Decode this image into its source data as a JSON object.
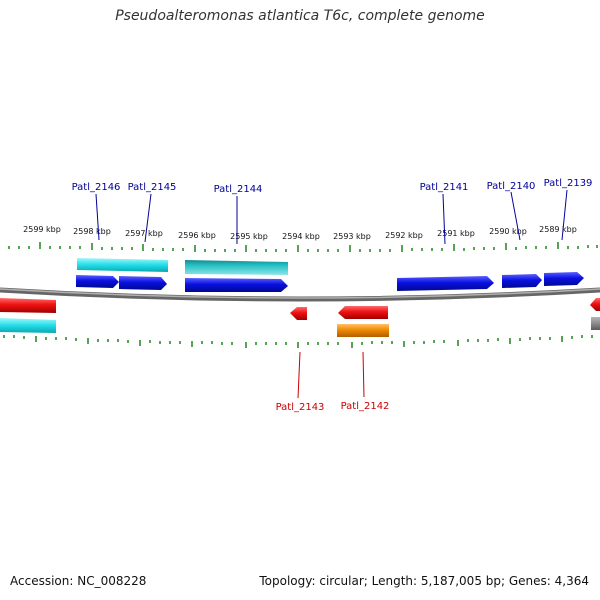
{
  "title": "Pseudoalteromonas atlantica T6c, complete genome",
  "footer": {
    "accession": "Accession: NC_008228",
    "summary": "Topology: circular; Length: 5,187,005 bp; Genes: 4,364"
  },
  "colors": {
    "tick": "#2e8b2e",
    "backbone": "#8a8a8a",
    "cds_forward": "#0a10e0",
    "cds_reverse": "#ee1111",
    "rna_forward": "#22dde8",
    "rna_teal": "#24c0c4",
    "misc_reverse": "#f08a00",
    "other": "#777777",
    "label_top": "#000099",
    "label_bottom": "#cc0000"
  },
  "scale_labels": [
    "2599 kbp",
    "2598 kbp",
    "2597 kbp",
    "2596 kbp",
    "2595 kbp",
    "2594 kbp",
    "2593 kbp",
    "2592 kbp",
    "2591 kbp",
    "2590 kbp",
    "2589 kbp"
  ],
  "gene_labels_top": [
    "Patl_2146",
    "Patl_2145",
    "Patl_2144",
    "Patl_2141",
    "Patl_2140",
    "Patl_2139"
  ],
  "gene_labels_bottom": [
    "Patl_2143",
    "Patl_2142"
  ]
}
